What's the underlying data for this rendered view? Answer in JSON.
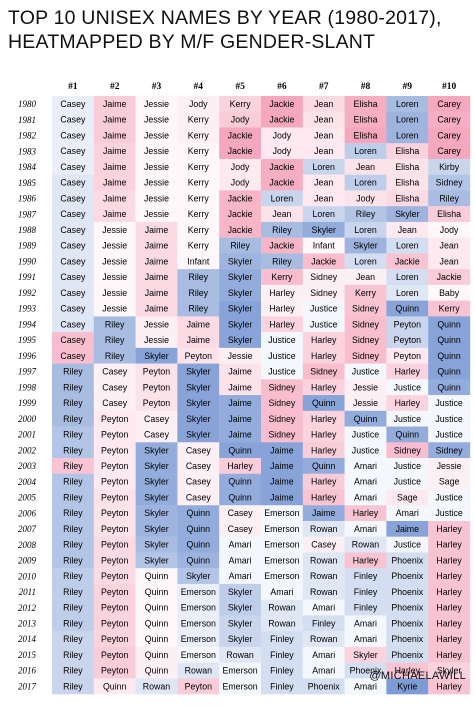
{
  "title_lines": [
    "TOP 10 UNISEX NAMES BY YEAR (1980-2017),",
    "HEATMAPPED BY M/F GENDER-SLANT"
  ],
  "credit": "@MICHAELAWILL",
  "colors": {
    "male": "#7d9bd4",
    "neutral": "#ffffff",
    "female": "#f5a7bd"
  },
  "chart_data": {
    "type": "heatmap",
    "title": "TOP 10 UNISEX NAMES BY YEAR (1980-2017), HEATMAPPED BY M/F GENDER-SLANT",
    "columns": [
      "#1",
      "#2",
      "#3",
      "#4",
      "#5",
      "#6",
      "#7",
      "#8",
      "#9",
      "#10"
    ],
    "years": [
      "1980",
      "1981",
      "1982",
      "1983",
      "1984",
      "1985",
      "1986",
      "1987",
      "1988",
      "1989",
      "1990",
      "1991",
      "1992",
      "1993",
      "1994",
      "1995",
      "1996",
      "1997",
      "1998",
      "1999",
      "2000",
      "2001",
      "2002",
      "2003",
      "2004",
      "2005",
      "2006",
      "2007",
      "2008",
      "2009",
      "2010",
      "2011",
      "2012",
      "2013",
      "2014",
      "2015",
      "2016",
      "2017"
    ],
    "color_scale": "-1 = male-slanted (blue), 0 = neutral (white), 1 = female-slanted (pink)",
    "names": [
      [
        "Casey",
        "Jaime",
        "Jessie",
        "Jody",
        "Kerry",
        "Jackie",
        "Jean",
        "Elisha",
        "Loren",
        "Carey"
      ],
      [
        "Casey",
        "Jaime",
        "Jessie",
        "Kerry",
        "Jody",
        "Jackie",
        "Jean",
        "Elisha",
        "Loren",
        "Carey"
      ],
      [
        "Casey",
        "Jaime",
        "Jessie",
        "Kerry",
        "Jackie",
        "Jody",
        "Jean",
        "Elisha",
        "Loren",
        "Carey"
      ],
      [
        "Casey",
        "Jaime",
        "Jessie",
        "Kerry",
        "Jackie",
        "Jody",
        "Jean",
        "Loren",
        "Elisha",
        "Carey"
      ],
      [
        "Casey",
        "Jaime",
        "Jessie",
        "Kerry",
        "Jody",
        "Jackie",
        "Loren",
        "Jean",
        "Elisha",
        "Kirby"
      ],
      [
        "Casey",
        "Jaime",
        "Jessie",
        "Kerry",
        "Jody",
        "Jackie",
        "Jean",
        "Loren",
        "Elisha",
        "Sidney"
      ],
      [
        "Casey",
        "Jaime",
        "Jessie",
        "Kerry",
        "Jackie",
        "Loren",
        "Jean",
        "Jody",
        "Elisha",
        "Riley"
      ],
      [
        "Casey",
        "Jaime",
        "Jessie",
        "Kerry",
        "Jackie",
        "Jean",
        "Loren",
        "Riley",
        "Skyler",
        "Elisha"
      ],
      [
        "Casey",
        "Jessie",
        "Jaime",
        "Kerry",
        "Jackie",
        "Riley",
        "Skyler",
        "Loren",
        "Jean",
        "Jody"
      ],
      [
        "Casey",
        "Jessie",
        "Jaime",
        "Kerry",
        "Riley",
        "Jackie",
        "Infant",
        "Skyler",
        "Loren",
        "Jean"
      ],
      [
        "Casey",
        "Jessie",
        "Jaime",
        "Infant",
        "Skyler",
        "Riley",
        "Jackie",
        "Loren",
        "Jackie",
        "Jean"
      ],
      [
        "Casey",
        "Jessie",
        "Jaime",
        "Riley",
        "Skyler",
        "Kerry",
        "Sidney",
        "Jean",
        "Loren",
        "Jackie"
      ],
      [
        "Casey",
        "Jessie",
        "Jaime",
        "Riley",
        "Skyler",
        "Harley",
        "Sidney",
        "Kerry",
        "Loren",
        "Baby"
      ],
      [
        "Casey",
        "Jessie",
        "Jaime",
        "Riley",
        "Skyler",
        "Harley",
        "Justice",
        "Sidney",
        "Quinn",
        "Kerry"
      ],
      [
        "Casey",
        "Riley",
        "Jessie",
        "Jaime",
        "Skyler",
        "Harley",
        "Justice",
        "Sidney",
        "Peyton",
        "Quinn"
      ],
      [
        "Casey",
        "Riley",
        "Jessie",
        "Jaime",
        "Skyler",
        "Justice",
        "Harley",
        "Sidney",
        "Peyton",
        "Quinn"
      ],
      [
        "Casey",
        "Riley",
        "Skyler",
        "Peyton",
        "Jessie",
        "Justice",
        "Harley",
        "Sidney",
        "Peyton",
        "Quinn"
      ],
      [
        "Riley",
        "Casey",
        "Peyton",
        "Skyler",
        "Jaime",
        "Justice",
        "Sidney",
        "Justice",
        "Harley",
        "Quinn"
      ],
      [
        "Riley",
        "Casey",
        "Peyton",
        "Skyler",
        "Jaime",
        "Sidney",
        "Harley",
        "Jessie",
        "Justice",
        "Quinn"
      ],
      [
        "Riley",
        "Casey",
        "Peyton",
        "Skyler",
        "Jaime",
        "Sidney",
        "Quinn",
        "Jessie",
        "Harley",
        "Justice"
      ],
      [
        "Riley",
        "Peyton",
        "Casey",
        "Skyler",
        "Jaime",
        "Sidney",
        "Harley",
        "Quinn",
        "Justice",
        "Justice"
      ],
      [
        "Riley",
        "Peyton",
        "Casey",
        "Skyler",
        "Jaime",
        "Sidney",
        "Harley",
        "Justice",
        "Quinn",
        "Justice"
      ],
      [
        "Riley",
        "Peyton",
        "Skyler",
        "Casey",
        "Quinn",
        "Jaime",
        "Harley",
        "Justice",
        "Sidney",
        "Sidney"
      ],
      [
        "Riley",
        "Peyton",
        "Skyler",
        "Casey",
        "Harley",
        "Jaime",
        "Quinn",
        "Amari",
        "Justice",
        "Jessie"
      ],
      [
        "Riley",
        "Peyton",
        "Skyler",
        "Casey",
        "Quinn",
        "Jaime",
        "Harley",
        "Amari",
        "Justice",
        "Sage"
      ],
      [
        "Riley",
        "Peyton",
        "Skyler",
        "Casey",
        "Quinn",
        "Jaime",
        "Harley",
        "Amari",
        "Sage",
        "Justice"
      ],
      [
        "Riley",
        "Peyton",
        "Skyler",
        "Quinn",
        "Casey",
        "Emerson",
        "Jaime",
        "Harley",
        "Amari",
        "Justice"
      ],
      [
        "Riley",
        "Peyton",
        "Skyler",
        "Quinn",
        "Casey",
        "Emerson",
        "Rowan",
        "Amari",
        "Jaime",
        "Harley"
      ],
      [
        "Riley",
        "Peyton",
        "Skyler",
        "Quinn",
        "Amari",
        "Emerson",
        "Casey",
        "Rowan",
        "Justice",
        "Harley"
      ],
      [
        "Riley",
        "Peyton",
        "Skyler",
        "Quinn",
        "Amari",
        "Emerson",
        "Rowan",
        "Harley",
        "Phoenix",
        "Harley"
      ],
      [
        "Riley",
        "Peyton",
        "Quinn",
        "Skyler",
        "Amari",
        "Emerson",
        "Rowan",
        "Finley",
        "Phoenix",
        "Harley"
      ],
      [
        "Riley",
        "Peyton",
        "Quinn",
        "Emerson",
        "Skyler",
        "Amari",
        "Rowan",
        "Finley",
        "Phoenix",
        "Harley"
      ],
      [
        "Riley",
        "Peyton",
        "Quinn",
        "Emerson",
        "Skyler",
        "Rowan",
        "Amari",
        "Finley",
        "Phoenix",
        "Harley"
      ],
      [
        "Riley",
        "Peyton",
        "Quinn",
        "Emerson",
        "Skyler",
        "Rowan",
        "Finley",
        "Amari",
        "Phoenix",
        "Harley"
      ],
      [
        "Riley",
        "Peyton",
        "Quinn",
        "Emerson",
        "Skyler",
        "Finley",
        "Rowan",
        "Amari",
        "Phoenix",
        "Harley"
      ],
      [
        "Riley",
        "Peyton",
        "Quinn",
        "Emerson",
        "Rowan",
        "Finley",
        "Amari",
        "Skyler",
        "Phoenix",
        "Harley"
      ],
      [
        "Riley",
        "Peyton",
        "Quinn",
        "Rowan",
        "Emerson",
        "Finley",
        "Amari",
        "Phoenix",
        "Harley",
        "Skyler"
      ],
      [
        "Riley",
        "Quinn",
        "Rowan",
        "Peyton",
        "Emerson",
        "Finley",
        "Phoenix",
        "Amari",
        "Kyrie",
        "Harley"
      ]
    ],
    "values": [
      [
        -0.1,
        0.35,
        0.05,
        0.1,
        0.3,
        0.6,
        0.25,
        0.55,
        -0.4,
        0.7
      ],
      [
        -0.1,
        0.35,
        0.05,
        0.1,
        0.35,
        0.6,
        0.2,
        0.55,
        -0.45,
        0.55
      ],
      [
        -0.1,
        0.35,
        0.05,
        0.1,
        0.6,
        0.15,
        0.15,
        0.6,
        -0.45,
        0.7
      ],
      [
        -0.1,
        0.3,
        0.05,
        0.05,
        0.6,
        0.15,
        0.15,
        -0.3,
        0.3,
        0.65
      ],
      [
        -0.1,
        0.3,
        0.05,
        0.05,
        0.15,
        0.55,
        -0.25,
        0.2,
        0.2,
        -0.25
      ],
      [
        -0.15,
        0.3,
        0.05,
        0.05,
        0.15,
        0.55,
        0.15,
        -0.3,
        0.2,
        -0.35
      ],
      [
        -0.15,
        0.25,
        0.05,
        0.05,
        0.5,
        -0.25,
        0.15,
        0.2,
        0.25,
        -0.4
      ],
      [
        -0.15,
        0.25,
        0.05,
        0.05,
        0.5,
        0.2,
        -0.25,
        -0.35,
        -0.45,
        0.35
      ],
      [
        -0.15,
        0.05,
        0.25,
        0.05,
        0.5,
        -0.4,
        -0.5,
        -0.25,
        0.15,
        0.05
      ],
      [
        -0.15,
        0.05,
        0.25,
        0.05,
        -0.4,
        0.5,
        0.05,
        -0.45,
        -0.2,
        0.15
      ],
      [
        -0.15,
        0.05,
        0.25,
        0.05,
        -0.45,
        -0.4,
        0.45,
        -0.2,
        0.4,
        0.15
      ],
      [
        -0.15,
        0.05,
        0.25,
        -0.4,
        -0.5,
        0.45,
        0.1,
        0.1,
        -0.2,
        0.35
      ],
      [
        -0.15,
        0.05,
        0.25,
        -0.4,
        -0.5,
        0.1,
        0.1,
        0.4,
        -0.15,
        0.05
      ],
      [
        -0.15,
        0.05,
        0.25,
        -0.4,
        -0.55,
        0.1,
        -0.05,
        0.4,
        -0.55,
        0.4
      ],
      [
        -0.15,
        -0.4,
        0.1,
        0.25,
        -0.55,
        0.3,
        -0.05,
        0.45,
        -0.25,
        -0.55
      ],
      [
        0.45,
        -0.4,
        0.1,
        0.25,
        -0.55,
        -0.05,
        0.3,
        0.45,
        -0.25,
        -0.55
      ],
      [
        0.45,
        -0.4,
        -0.55,
        0.2,
        0.1,
        -0.05,
        0.3,
        0.45,
        0.15,
        -0.55
      ],
      [
        -0.4,
        0.1,
        0.2,
        -0.55,
        0.2,
        -0.05,
        0.45,
        -0.05,
        0.3,
        -0.55
      ],
      [
        -0.4,
        0.1,
        0.2,
        -0.55,
        0.2,
        0.45,
        0.3,
        0.1,
        -0.05,
        -0.5
      ],
      [
        -0.4,
        0.1,
        0.2,
        -0.55,
        -0.5,
        0.45,
        -0.55,
        0.1,
        0.3,
        -0.05
      ],
      [
        -0.4,
        0.15,
        0.1,
        -0.55,
        -0.5,
        0.45,
        0.3,
        -0.5,
        -0.05,
        -0.05
      ],
      [
        -0.35,
        0.15,
        0.1,
        -0.55,
        -0.5,
        0.45,
        0.3,
        -0.05,
        -0.5,
        -0.05
      ],
      [
        -0.35,
        0.15,
        -0.5,
        0.1,
        -0.55,
        -0.55,
        0.35,
        -0.05,
        0.45,
        -0.5
      ],
      [
        0.4,
        0.15,
        -0.5,
        0.1,
        0.35,
        -0.55,
        -0.5,
        -0.05,
        -0.05,
        0.1
      ],
      [
        -0.35,
        0.15,
        -0.5,
        0.1,
        -0.5,
        -0.55,
        0.35,
        -0.05,
        -0.05,
        0.1
      ],
      [
        -0.35,
        0.2,
        -0.5,
        0.1,
        -0.5,
        -0.55,
        0.4,
        -0.05,
        0.15,
        -0.05
      ],
      [
        -0.35,
        0.2,
        -0.45,
        -0.5,
        0.1,
        -0.05,
        -0.5,
        0.4,
        -0.05,
        -0.05
      ],
      [
        -0.35,
        0.2,
        -0.45,
        -0.5,
        0.1,
        -0.05,
        -0.15,
        -0.05,
        -0.55,
        0.4
      ],
      [
        -0.35,
        0.25,
        -0.4,
        -0.5,
        -0.05,
        -0.05,
        0.1,
        -0.15,
        -0.05,
        0.4
      ],
      [
        -0.35,
        0.25,
        -0.35,
        -0.45,
        -0.05,
        -0.05,
        -0.15,
        0.4,
        -0.2,
        0.4
      ],
      [
        -0.3,
        0.25,
        0.05,
        -0.35,
        -0.05,
        -0.05,
        -0.15,
        -0.2,
        -0.2,
        0.4
      ],
      [
        -0.3,
        0.3,
        0.05,
        -0.1,
        -0.3,
        -0.05,
        -0.15,
        -0.2,
        -0.2,
        0.4
      ],
      [
        -0.3,
        0.3,
        0.05,
        -0.1,
        -0.3,
        -0.15,
        -0.05,
        -0.2,
        -0.2,
        0.4
      ],
      [
        -0.3,
        0.3,
        0.05,
        -0.1,
        -0.25,
        -0.15,
        -0.2,
        -0.05,
        -0.2,
        0.4
      ],
      [
        -0.25,
        0.3,
        0.05,
        -0.1,
        -0.25,
        -0.2,
        -0.15,
        -0.05,
        -0.2,
        0.4
      ],
      [
        -0.25,
        0.35,
        0.1,
        -0.05,
        -0.15,
        -0.2,
        -0.05,
        0.3,
        -0.2,
        0.4
      ],
      [
        -0.25,
        0.35,
        0.1,
        -0.15,
        -0.05,
        -0.2,
        -0.05,
        -0.2,
        0.4,
        0.3
      ],
      [
        -0.25,
        0.15,
        -0.15,
        0.35,
        -0.05,
        -0.2,
        -0.2,
        -0.05,
        -0.6,
        0.4
      ]
    ]
  }
}
